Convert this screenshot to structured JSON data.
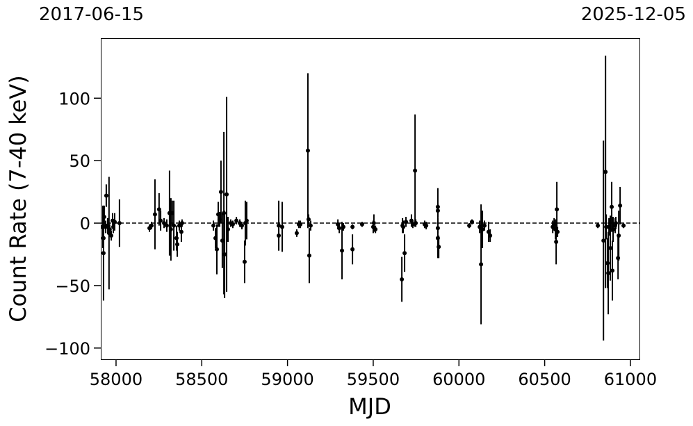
{
  "chart_data": {
    "type": "scatter",
    "title": "",
    "xlabel": "MJD",
    "ylabel": "Count Rate (7-40 keV)",
    "top_axis_labels": {
      "left": "2017-06-15",
      "right": "2025-12-05"
    },
    "xlim": [
      57911,
      61053
    ],
    "ylim": [
      -109,
      148
    ],
    "xticks": [
      58000,
      58500,
      59000,
      59500,
      60000,
      60500,
      61000
    ],
    "yticks": [
      -100,
      -50,
      0,
      50,
      100
    ],
    "reference_line": {
      "y": 0,
      "style": "dashed"
    },
    "grid": false,
    "marker_color": "#000000",
    "points_columns": [
      "mjd",
      "rate",
      "error"
    ],
    "points": [
      [
        57923,
        -3,
        17
      ],
      [
        57927,
        -12,
        8
      ],
      [
        57927,
        -24,
        38
      ],
      [
        57931,
        5,
        9
      ],
      [
        57939,
        -3,
        5
      ],
      [
        57943,
        22,
        9
      ],
      [
        57951,
        -2,
        6
      ],
      [
        57959,
        -8,
        45
      ],
      [
        57963,
        -5,
        4
      ],
      [
        57972,
        -10,
        4
      ],
      [
        57980,
        2,
        6
      ],
      [
        57984,
        -3,
        5
      ],
      [
        57992,
        1,
        7
      ],
      [
        58020,
        0,
        19
      ],
      [
        58195,
        -4,
        3
      ],
      [
        58207,
        -2,
        3
      ],
      [
        58227,
        7,
        28
      ],
      [
        58251,
        11,
        13
      ],
      [
        58260,
        2,
        8
      ],
      [
        58280,
        0,
        4
      ],
      [
        58296,
        -2,
        5
      ],
      [
        58312,
        8,
        34
      ],
      [
        58320,
        -5,
        25
      ],
      [
        58328,
        8,
        10
      ],
      [
        58337,
        -2,
        20
      ],
      [
        58353,
        -12,
        10
      ],
      [
        58357,
        -17,
        10
      ],
      [
        58369,
        -2,
        4
      ],
      [
        58381,
        -7,
        8
      ],
      [
        58385,
        0,
        3
      ],
      [
        58568,
        -2,
        4
      ],
      [
        58580,
        -12,
        8
      ],
      [
        58588,
        -21,
        20
      ],
      [
        58596,
        7,
        10
      ],
      [
        58604,
        3,
        6
      ],
      [
        58612,
        25,
        25
      ],
      [
        58620,
        -14,
        22
      ],
      [
        58629,
        8,
        65
      ],
      [
        58633,
        -25,
        35
      ],
      [
        58645,
        23,
        78
      ],
      [
        58653,
        -5,
        10
      ],
      [
        58669,
        0,
        3
      ],
      [
        58681,
        -1,
        3
      ],
      [
        58702,
        2,
        3
      ],
      [
        58722,
        0,
        3
      ],
      [
        58734,
        -2,
        3
      ],
      [
        58750,
        -31,
        17
      ],
      [
        58754,
        0,
        18
      ],
      [
        58762,
        2,
        15
      ],
      [
        58949,
        -2,
        20
      ],
      [
        58949,
        -10,
        12
      ],
      [
        58969,
        -3,
        20
      ],
      [
        59054,
        -8,
        3
      ],
      [
        59066,
        -1,
        3
      ],
      [
        59075,
        -1,
        3
      ],
      [
        59119,
        58,
        62
      ],
      [
        59123,
        3,
        4
      ],
      [
        59127,
        -26,
        22
      ],
      [
        59135,
        -2,
        4
      ],
      [
        59294,
        -1,
        4
      ],
      [
        59302,
        -4,
        4
      ],
      [
        59318,
        -22,
        23
      ],
      [
        59326,
        -3,
        3
      ],
      [
        59379,
        -21,
        12
      ],
      [
        59379,
        -3,
        2
      ],
      [
        59435,
        -1,
        2
      ],
      [
        59500,
        -3,
        5
      ],
      [
        59504,
        0,
        7
      ],
      [
        59513,
        -5,
        3
      ],
      [
        59667,
        -45,
        18
      ],
      [
        59671,
        -2,
        6
      ],
      [
        59675,
        -3,
        5
      ],
      [
        59683,
        -24,
        15
      ],
      [
        59691,
        1,
        4
      ],
      [
        59723,
        2,
        5
      ],
      [
        59731,
        -1,
        3
      ],
      [
        59744,
        42,
        45
      ],
      [
        59748,
        0,
        3
      ],
      [
        59800,
        -1,
        3
      ],
      [
        59809,
        -2,
        3
      ],
      [
        59877,
        13,
        15
      ],
      [
        59877,
        10,
        5
      ],
      [
        59877,
        -4,
        4
      ],
      [
        59877,
        -12,
        16
      ],
      [
        59882,
        -19,
        9
      ],
      [
        60060,
        -2,
        2
      ],
      [
        60076,
        1,
        2
      ],
      [
        60121,
        -3,
        5
      ],
      [
        60129,
        -33,
        48
      ],
      [
        60137,
        -5,
        15
      ],
      [
        60149,
        -2,
        4
      ],
      [
        60173,
        -7,
        8
      ],
      [
        60182,
        -10,
        5
      ],
      [
        60547,
        -3,
        5
      ],
      [
        60555,
        -1,
        5
      ],
      [
        60563,
        -5,
        8
      ],
      [
        60567,
        -15,
        18
      ],
      [
        60571,
        11,
        22
      ],
      [
        60575,
        -7,
        4
      ],
      [
        60810,
        -2,
        2
      ],
      [
        60843,
        -14,
        80
      ],
      [
        60855,
        41,
        93
      ],
      [
        60859,
        -3,
        10
      ],
      [
        60867,
        -32,
        20
      ],
      [
        60871,
        -40,
        33
      ],
      [
        60875,
        -3,
        7
      ],
      [
        60883,
        -20,
        26
      ],
      [
        60891,
        13,
        20
      ],
      [
        60895,
        -38,
        24
      ],
      [
        60899,
        -5,
        10
      ],
      [
        60911,
        -2,
        6
      ],
      [
        60915,
        0,
        5
      ],
      [
        60928,
        -28,
        17
      ],
      [
        60932,
        -10,
        20
      ],
      [
        60940,
        14,
        15
      ],
      [
        60960,
        -2,
        2
      ]
    ]
  }
}
